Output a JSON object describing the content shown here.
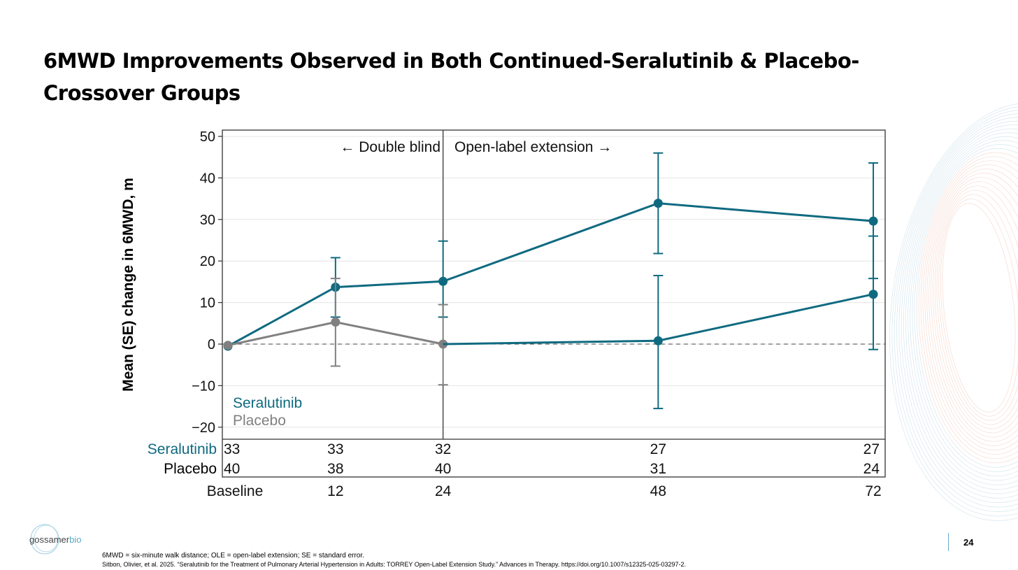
{
  "slide": {
    "title": "6MWD Improvements Observed in Both Continued-Seralutinib & Placebo-Crossover Groups",
    "page_number": "24",
    "logo_text_main": "gossamer",
    "logo_text_accent": "bio",
    "footnote": "6MWD = six-minute walk distance; OLE = open-label extension; SE = standard error.",
    "citation": "Sitbon, Olivier, et al. 2025. “Seralutinib for the Treatment of Pulmonary Arterial Hypertension in Adults: TORREY Open-Label Extension Study.” Advances in Therapy. https://doi.org/10.1007/s12325-025-03297-2."
  },
  "chart_data": {
    "type": "line",
    "ylabel": "Mean (SE) change in 6MWD, m",
    "xlabel": "",
    "ylim": [
      -22,
      52
    ],
    "yticks": [
      50,
      40,
      30,
      20,
      10,
      0,
      -10,
      -20
    ],
    "ytick_labels": [
      "50",
      "40",
      "30",
      "20",
      "10",
      "0",
      "−10",
      "−20"
    ],
    "x": [
      0,
      12,
      24,
      48,
      72
    ],
    "xtick_labels": [
      "Baseline",
      "12",
      "24",
      "48",
      "72"
    ],
    "grid": "horizontal",
    "reference_line": 0,
    "divider_x": 24,
    "annotations": {
      "left": "Double blind",
      "right": "Open-label extension"
    },
    "legend": {
      "placement": "bottom-left",
      "entries": [
        "Seralutinib",
        "Placebo"
      ]
    },
    "colors": {
      "seralutinib": "#0f6a80",
      "placebo": "#808080"
    },
    "series": [
      {
        "name": "Seralutinib",
        "color": "#0f6a80",
        "x": [
          0,
          12,
          24,
          48,
          72
        ],
        "y": [
          -0.5,
          13.7,
          15.1,
          33.9,
          29.6
        ],
        "err_low": [
          null,
          6.5,
          6.5,
          21.8,
          15.8
        ],
        "err_high": [
          null,
          20.8,
          24.8,
          46.0,
          43.6
        ]
      },
      {
        "name": "Placebo",
        "color": "#808080",
        "x": [
          0,
          12,
          24
        ],
        "y": [
          -0.3,
          5.3,
          0.0
        ],
        "err_low": [
          null,
          -5.3,
          -9.8
        ],
        "err_high": [
          null,
          15.8,
          9.5
        ]
      },
      {
        "color": "#0f6a80",
        "x": [
          24,
          48,
          72
        ],
        "y": [
          0.0,
          0.8,
          12.0
        ],
        "err_low": [
          null,
          -15.5,
          -1.3
        ],
        "err_high": [
          null,
          16.5,
          26.0
        ]
      }
    ],
    "at_risk_table": {
      "rows": [
        {
          "label": "Seralutinib",
          "color": "#0f6a80",
          "values": [
            "33",
            "33",
            "32",
            "27",
            "27"
          ]
        },
        {
          "label": "Placebo",
          "color": "#000000",
          "values": [
            "40",
            "38",
            "40",
            "31",
            "24"
          ]
        }
      ]
    }
  }
}
